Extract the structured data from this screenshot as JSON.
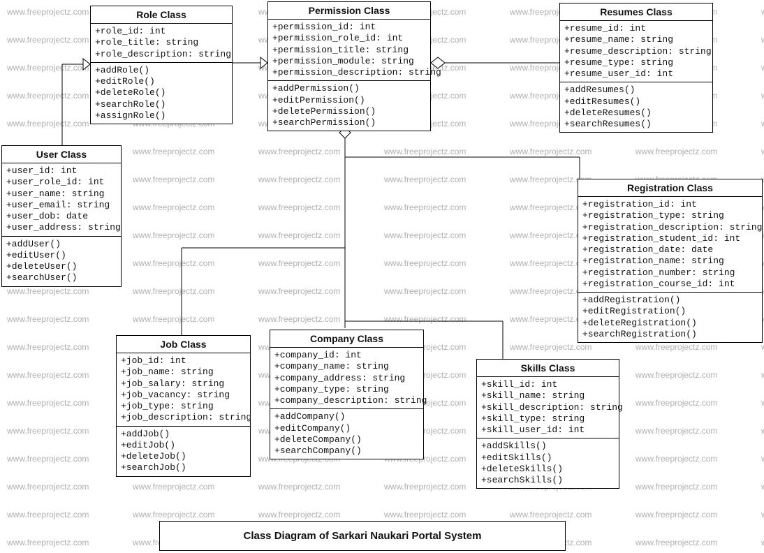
{
  "watermark_text": "www.freeprojectz.com",
  "watermark_color": "#b0b0b0",
  "box_border_color": "#000000",
  "box_bg_color": "#ffffff",
  "line_color": "#000000",
  "diagram_title": "Class Diagram of Sarkari Naukari Portal System",
  "classes": {
    "role": {
      "title": "Role Class",
      "attrs": [
        "+role_id: int",
        "+role_title: string",
        "+role_description: string"
      ],
      "methods": [
        "+addRole()",
        "+editRole()",
        "+deleteRole()",
        "+searchRole()",
        "+assignRole()"
      ]
    },
    "permission": {
      "title": "Permission Class",
      "attrs": [
        "+permission_id: int",
        "+permission_role_id: int",
        "+permission_title: string",
        "+permission_module: string",
        "+permission_description: string"
      ],
      "methods": [
        "+addPermission()",
        "+editPermission()",
        "+deletePermission()",
        "+searchPermission()"
      ]
    },
    "resumes": {
      "title": "Resumes Class",
      "attrs": [
        "+resume_id: int",
        "+resume_name: string",
        "+resume_description: string",
        "+resume_type: string",
        "+resume_user_id: int"
      ],
      "methods": [
        "+addResumes()",
        "+editResumes()",
        "+deleteResumes()",
        "+searchResumes()"
      ]
    },
    "user": {
      "title": "User Class",
      "attrs": [
        "+user_id: int",
        "+user_role_id: int",
        "+user_name: string",
        "+user_email: string",
        "+user_dob: date",
        "+user_address: string"
      ],
      "methods": [
        "+addUser()",
        "+editUser()",
        "+deleteUser()",
        "+searchUser()"
      ]
    },
    "registration": {
      "title": "Registration Class",
      "attrs": [
        "+registration_id: int",
        "+registration_type: string",
        "+registration_description: string",
        "+registration_student_id: int",
        "+registration_date: date",
        "+registration_name: string",
        "+registration_number: string",
        "+registration_course_id: int"
      ],
      "methods": [
        "+addRegistration()",
        "+editRegistration()",
        "+deleteRegistration()",
        "+searchRegistration()"
      ]
    },
    "job": {
      "title": "Job Class",
      "attrs": [
        "+job_id: int",
        "+job_name: string",
        "+job_salary: string",
        "+job_vacancy: string",
        "+job_type: string",
        "+job_description: string"
      ],
      "methods": [
        "+addJob()",
        "+editJob()",
        "+deleteJob()",
        "+searchJob()"
      ]
    },
    "company": {
      "title": "Company  Class",
      "attrs": [
        "+company_id: int",
        "+company_name: string",
        "+company_address: string",
        "+company_type: string",
        "+company_description: string"
      ],
      "methods": [
        "+addCompany()",
        "+editCompany()",
        "+deleteCompany()",
        "+searchCompany()"
      ]
    },
    "skills": {
      "title": "Skills Class",
      "attrs": [
        "+skill_id: int",
        "+skill_name: string",
        "+skill_description: string",
        "+skill_type: string",
        "+skill_user_id: int"
      ],
      "methods": [
        "+addSkills()",
        "+editSkills()",
        "+deleteSkills()",
        "+searchSkills()"
      ]
    }
  }
}
